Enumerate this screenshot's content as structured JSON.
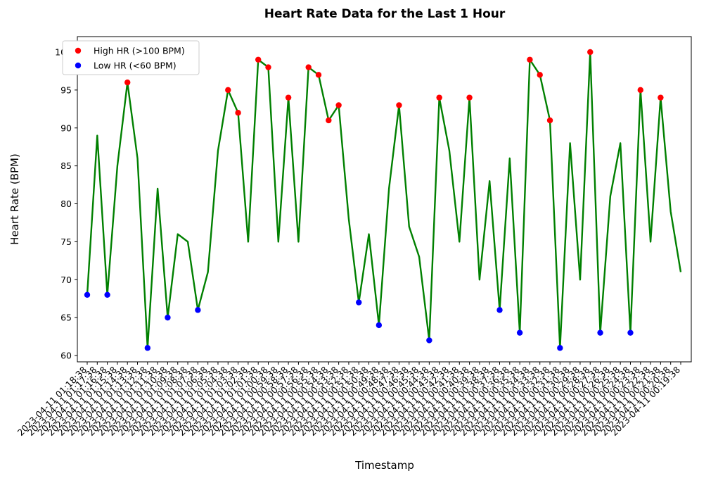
{
  "chart_data": {
    "type": "line",
    "title": "Heart Rate Data for the Last 1 Hour",
    "xlabel": "Timestamp",
    "ylabel": "Heart Rate (BPM)",
    "ylim": [
      59,
      102
    ],
    "yticks": [
      60,
      65,
      70,
      75,
      80,
      85,
      90,
      95,
      100
    ],
    "grid": false,
    "legend_position": "top-left",
    "line_color": "#008000",
    "high_color": "#ff0000",
    "low_color": "#0000ff",
    "high_threshold": 100,
    "low_threshold": 60,
    "legend": [
      {
        "label": "High HR (>100 BPM)",
        "color": "#ff0000"
      },
      {
        "label": "Low HR (<60 BPM)",
        "color": "#0000ff"
      }
    ],
    "x": [
      "2023-04-11 01:18:38",
      "2023-04-11 01:17:38",
      "2023-04-11 01:16:38",
      "2023-04-11 01:15:38",
      "2023-04-11 01:14:38",
      "2023-04-11 01:13:38",
      "2023-04-11 01:12:38",
      "2023-04-11 01:11:38",
      "2023-04-11 01:10:38",
      "2023-04-11 01:09:38",
      "2023-04-11 01:08:38",
      "2023-04-11 01:07:38",
      "2023-04-11 01:06:38",
      "2023-04-11 01:05:38",
      "2023-04-11 01:04:38",
      "2023-04-11 01:03:38",
      "2023-04-11 01:02:38",
      "2023-04-11 01:01:38",
      "2023-04-11 01:00:38",
      "2023-04-11 00:59:38",
      "2023-04-11 00:58:38",
      "2023-04-11 00:57:38",
      "2023-04-11 00:56:38",
      "2023-04-11 00:55:38",
      "2023-04-11 00:54:38",
      "2023-04-11 00:53:38",
      "2023-04-11 00:52:38",
      "2023-04-11 00:51:38",
      "2023-04-11 00:50:38",
      "2023-04-11 00:49:38",
      "2023-04-11 00:48:38",
      "2023-04-11 00:47:38",
      "2023-04-11 00:46:38",
      "2023-04-11 00:45:38",
      "2023-04-11 00:44:38",
      "2023-04-11 00:43:38",
      "2023-04-11 00:42:38",
      "2023-04-11 00:41:38",
      "2023-04-11 00:40:38",
      "2023-04-11 00:39:38",
      "2023-04-11 00:38:38",
      "2023-04-11 00:37:38",
      "2023-04-11 00:36:38",
      "2023-04-11 00:35:38",
      "2023-04-11 00:34:38",
      "2023-04-11 00:33:38",
      "2023-04-11 00:32:38",
      "2023-04-11 00:31:38",
      "2023-04-11 00:30:38",
      "2023-04-11 00:29:38",
      "2023-04-11 00:28:38",
      "2023-04-11 00:27:38",
      "2023-04-11 00:26:38",
      "2023-04-11 00:25:38",
      "2023-04-11 00:24:38",
      "2023-04-11 00:23:38",
      "2023-04-11 00:22:38",
      "2023-04-11 00:21:38",
      "2023-04-11 00:20:38",
      "2023-04-11 00:19:38"
    ],
    "series": [
      {
        "values": [
          68,
          89,
          68,
          85,
          96,
          86,
          61,
          82,
          65,
          76,
          75,
          66,
          71,
          87,
          95,
          92,
          75,
          99,
          98,
          75,
          94,
          75,
          98,
          97,
          91,
          93,
          78,
          67,
          76,
          64,
          82,
          93,
          77,
          73,
          62,
          94,
          87,
          75,
          94,
          70,
          83,
          66,
          86,
          63,
          99,
          97,
          91,
          61,
          88,
          70,
          100,
          63,
          81,
          88,
          63,
          95,
          75,
          94,
          79,
          71
        ]
      }
    ],
    "high_points": [
      4,
      14,
      15,
      17,
      18,
      20,
      22,
      23,
      24,
      25,
      31,
      35,
      38,
      44,
      45,
      46,
      50,
      55,
      57
    ],
    "low_points": [
      0,
      2,
      6,
      8,
      11,
      27,
      29,
      34,
      41,
      43,
      47,
      51,
      54
    ]
  }
}
